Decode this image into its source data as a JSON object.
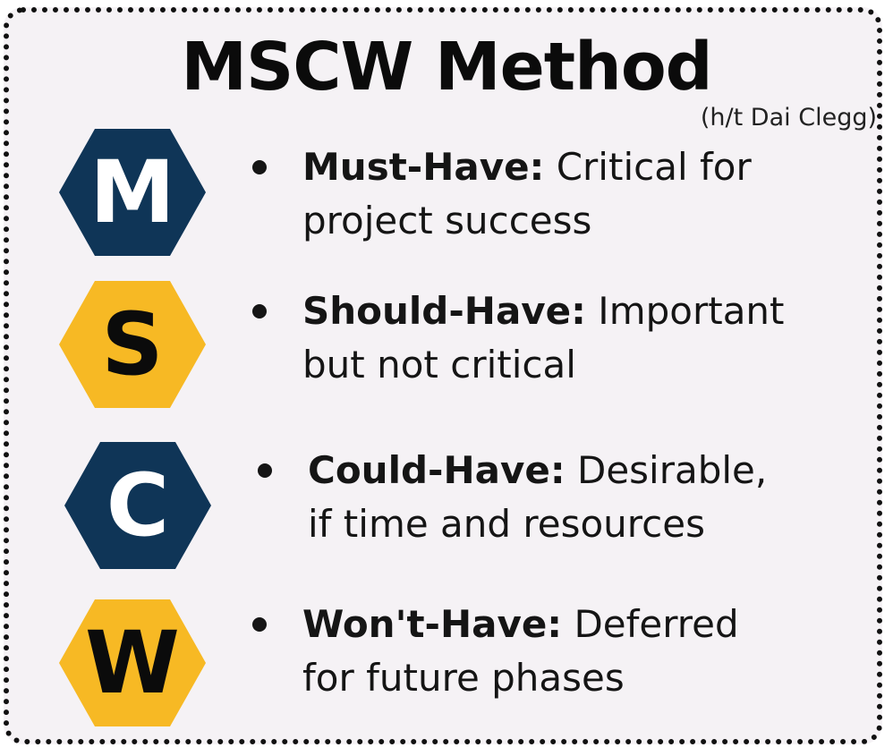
{
  "title": "MSCW Method",
  "credit": "(h/t Dai Clegg)",
  "colors": {
    "navy": "#0f3557",
    "gold": "#f7b924",
    "card_bg": "#f5f2f5",
    "border": "#111111"
  },
  "items": [
    {
      "letter": "M",
      "term": "Must-Have:",
      "line1_rest": " Critical for",
      "line2": "project success",
      "hex_color": "navy",
      "letter_color": "white"
    },
    {
      "letter": "S",
      "term": "Should-Have:",
      "line1_rest": " Important",
      "line2": "but not critical",
      "hex_color": "gold",
      "letter_color": "black"
    },
    {
      "letter": "C",
      "term": "Could-Have:",
      "line1_rest": " Desirable,",
      "line2": "if time and resources",
      "hex_color": "navy",
      "letter_color": "white"
    },
    {
      "letter": "W",
      "term": "Won't-Have:",
      "line1_rest": " Deferred",
      "line2": "for future phases",
      "hex_color": "gold",
      "letter_color": "black"
    }
  ]
}
